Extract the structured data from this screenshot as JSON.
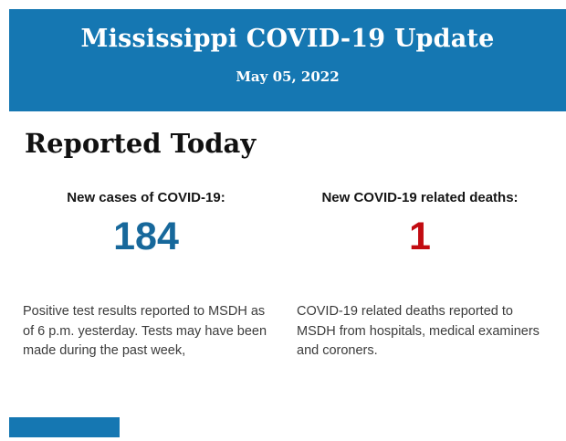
{
  "header": {
    "title": "Mississippi COVID-19 Update",
    "date": "May 05, 2022",
    "background_color": "#1577B2",
    "text_color": "#FFFFFF"
  },
  "section": {
    "heading": "Reported Today"
  },
  "stats": [
    {
      "label": "New cases of COVID-19:",
      "value": "184",
      "value_color": "#17689B",
      "description": "Positive test results reported to MSDH as of 6 p.m. yesterday. Tests may have been made during the past week,"
    },
    {
      "label": "New COVID-19 related deaths:",
      "value": "1",
      "value_color": "#C20B11",
      "description": "COVID-19 related deaths reported to MSDH from hospitals, medical examiners and coroners."
    }
  ],
  "footer": {
    "partial_block_color": "#1577B2"
  }
}
